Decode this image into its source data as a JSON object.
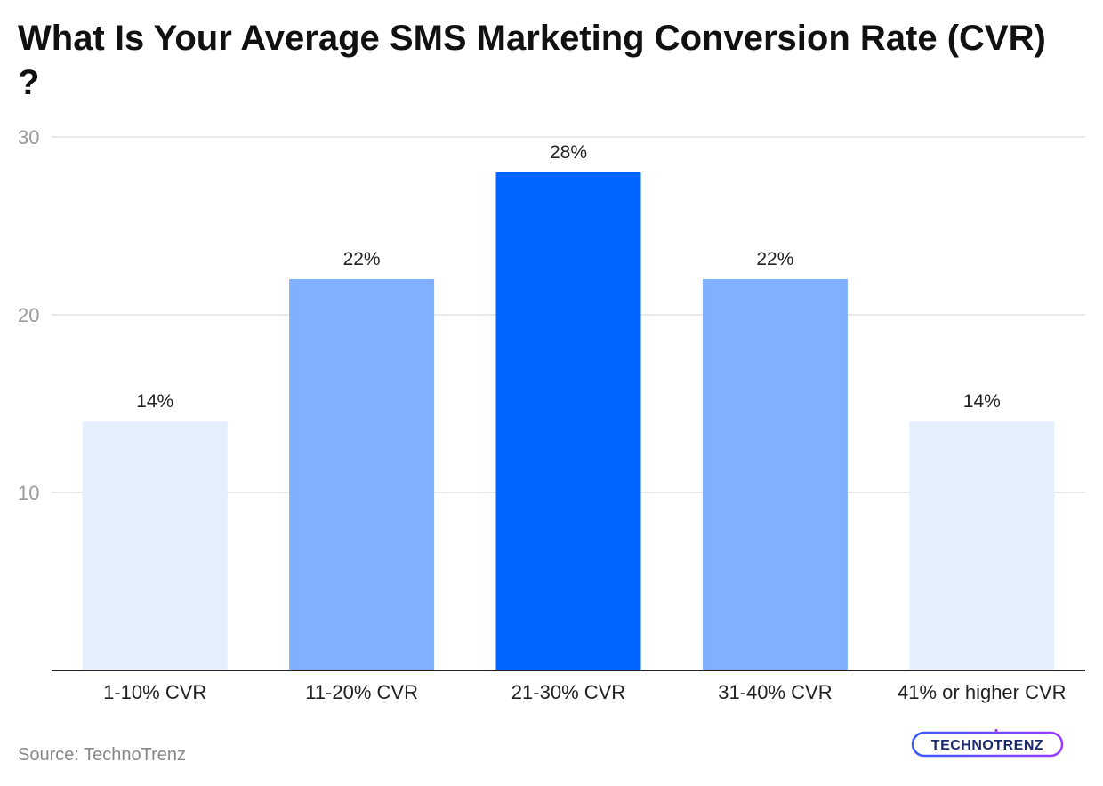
{
  "title": "What Is Your Average SMS Marketing Conversion Rate (CVR) ?",
  "source": "Source: TechnoTrenz",
  "logo_text": "TECHNOTRENZ",
  "colors": {
    "light": "#e6effe",
    "medium": "#80b0ff",
    "dark": "#0066ff",
    "grid": "#e2e2e2",
    "axis": "#222222",
    "tick": "#9a9a9a"
  },
  "chart_data": {
    "type": "bar",
    "title": "What Is Your Average SMS Marketing Conversion Rate (CVR) ?",
    "categories": [
      "1-10% CVR",
      "11-20% CVR",
      "21-30% CVR",
      "31-40% CVR",
      "41% or higher CVR"
    ],
    "values": [
      14,
      22,
      28,
      22,
      14
    ],
    "data_labels": [
      "14%",
      "22%",
      "28%",
      "22%",
      "14%"
    ],
    "bar_colors": [
      "#e6effe",
      "#80b0ff",
      "#0066ff",
      "#80b0ff",
      "#e6effe"
    ],
    "ylim": [
      0,
      30
    ],
    "yticks": [
      10,
      20,
      30
    ],
    "grid": true,
    "xlabel": "",
    "ylabel": ""
  }
}
